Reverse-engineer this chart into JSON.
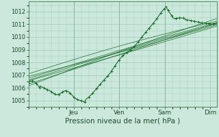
{
  "background_color": "#cce8dc",
  "plot_bg_color": "#cce8dc",
  "grid_color": "#99ccb8",
  "line_color": "#1a6b2a",
  "sep_color": "#4a8a60",
  "ylim": [
    1004.5,
    1012.8
  ],
  "yticks": [
    1005,
    1006,
    1007,
    1008,
    1009,
    1010,
    1011,
    1012
  ],
  "xlabel": "Pression niveau de la mer( hPa )",
  "xlabel_fontsize": 7.5,
  "tick_fontsize": 6,
  "day_labels": [
    "Jeu",
    "Ven",
    "Sam",
    "Dim"
  ],
  "day_ticks": [
    1,
    2,
    3,
    4
  ],
  "xlim": [
    0,
    4.15
  ],
  "forecast_lines": [
    [
      1006.3,
      1011.1,
      0.0
    ],
    [
      1006.6,
      1011.05,
      0.08
    ],
    [
      1006.9,
      1010.95,
      -0.08
    ],
    [
      1007.1,
      1011.25,
      0.18
    ],
    [
      1006.15,
      1011.45,
      0.13
    ],
    [
      1006.55,
      1010.85,
      -0.04
    ],
    [
      1006.75,
      1011.15,
      0.06
    ]
  ]
}
